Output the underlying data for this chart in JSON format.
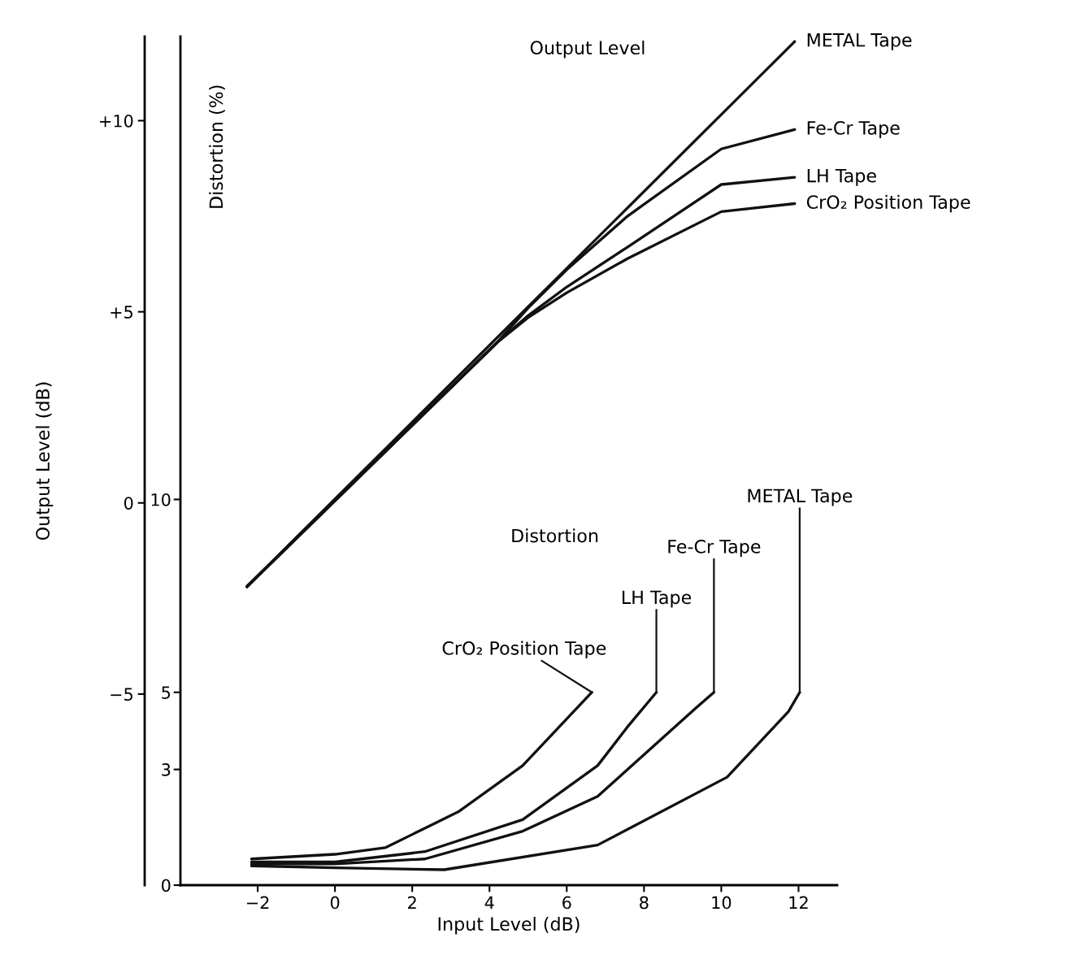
{
  "chart_data": {
    "type": "line",
    "xlabel": "Input Level (dB)",
    "ylabel": "Output Level (dB)",
    "y2label": "Distortion (%)",
    "xlim": [
      -4,
      13
    ],
    "xticks": [
      {
        "value": -2,
        "label": "−2"
      },
      0,
      2,
      4,
      6,
      8,
      10,
      12
    ],
    "ylim": [
      -10,
      12.2
    ],
    "yticks": [
      {
        "value": -5,
        "label": "−5"
      },
      0,
      {
        "value": 5,
        "label": "+5"
      },
      {
        "value": 10,
        "label": "+10"
      }
    ],
    "y2lim": [
      0,
      22
    ],
    "y2ticks": [
      0,
      3,
      5,
      10
    ],
    "grid": false,
    "marker": "none",
    "line_style": "solid",
    "series": [
      {
        "name": "METAL Tape",
        "color": "#111111",
        "x": [
          -2.28,
          11.9
        ],
        "values": [
          -2.19,
          12.07
        ]
      },
      {
        "name": "Fe-Cr Tape",
        "color": "#111111",
        "x": [
          -2.28,
          4.2,
          5,
          6,
          7.57,
          10.0,
          11.9
        ],
        "values": [
          -2.19,
          4.2,
          5.1,
          6.1,
          7.5,
          9.26,
          9.77
        ]
      },
      {
        "name": "LH Tape",
        "color": "#111111",
        "x": [
          -2.28,
          4.2,
          5,
          6,
          7.57,
          10.0,
          11.9
        ],
        "values": [
          -2.19,
          4.2,
          4.9,
          5.65,
          6.69,
          8.33,
          8.52
        ]
      },
      {
        "name": "CrO₂ Position Tape",
        "color": "#111111",
        "x": [
          -2.28,
          4.2,
          5,
          6,
          7.57,
          10.0,
          11.9
        ],
        "values": [
          -2.19,
          4.2,
          4.85,
          5.5,
          6.39,
          7.62,
          7.83
        ]
      },
      {
        "name": "CrO₂ Position Tape",
        "color": "#111111",
        "axis": "y2",
        "x": [
          -2.16,
          0,
          1.3,
          3.19,
          4.86,
          6.65
        ],
        "values": [
          0.68,
          0.8,
          0.97,
          1.9,
          3.1,
          5.0
        ]
      },
      {
        "name": "LH Tape",
        "color": "#111111",
        "axis": "y2",
        "x": [
          -2.16,
          0,
          2.33,
          4.86,
          6.8,
          7.57,
          8.32
        ],
        "values": [
          0.6,
          0.6,
          0.87,
          1.7,
          3.1,
          4.1,
          5.0
        ]
      },
      {
        "name": "Fe-Cr Tape",
        "color": "#111111",
        "axis": "y2",
        "x": [
          -2.16,
          0,
          2.33,
          4.86,
          6.8,
          9.35,
          9.81
        ],
        "values": [
          0.55,
          0.55,
          0.68,
          1.4,
          2.3,
          4.6,
          5.0
        ]
      },
      {
        "name": "METAL Tape",
        "color": "#111111",
        "axis": "y2",
        "x": [
          -2.16,
          0,
          2.83,
          6.8,
          10.15,
          11.74,
          12.03
        ],
        "values": [
          0.5,
          0.45,
          0.4,
          1.04,
          2.8,
          4.5,
          5.0
        ]
      }
    ],
    "annotations": [
      "Output Level",
      "Distortion"
    ]
  }
}
